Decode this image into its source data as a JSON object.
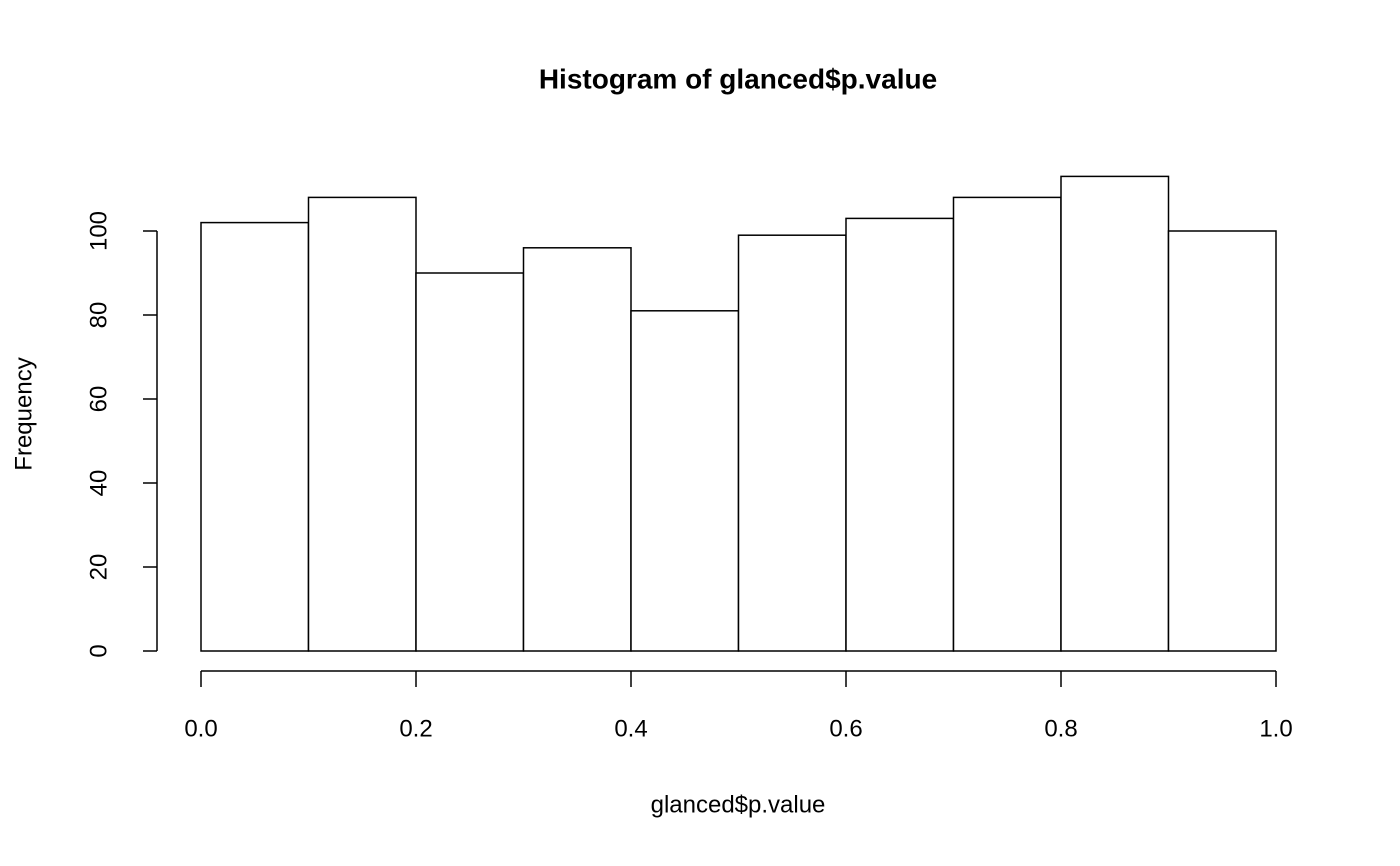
{
  "chart_data": {
    "type": "histogram",
    "title": "Histogram of glanced$p.value",
    "x_label": "glanced$p.value",
    "y_label": "Frequency",
    "bins": [
      0,
      0.1,
      0.2,
      0.3,
      0.4,
      0.5,
      0.6,
      0.7,
      0.8,
      0.9,
      1
    ],
    "counts": [
      102,
      108,
      90,
      96,
      81,
      99,
      103,
      108,
      113,
      100
    ],
    "color": "#ffffff",
    "edge_color": "#000000",
    "xlim": [
      0,
      1
    ],
    "xticks": [
      {
        "value": 0,
        "label": "0.0"
      },
      0.2,
      0.4,
      0.6,
      0.8,
      {
        "value": 1,
        "label": "1.0"
      }
    ],
    "ylim": [
      0,
      113
    ],
    "yticks": [
      0,
      20,
      40,
      60,
      80,
      100
    ],
    "grid": false
  }
}
